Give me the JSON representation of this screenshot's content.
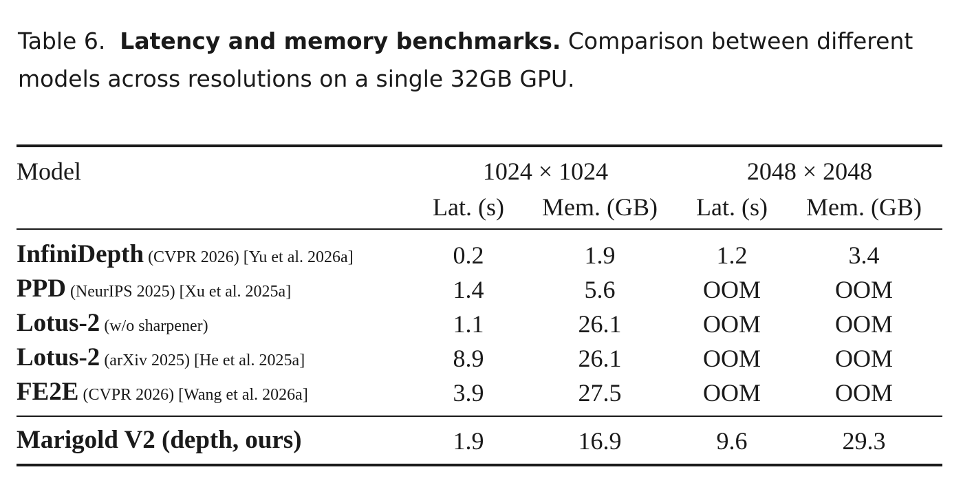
{
  "caption": {
    "label": "Table 6.",
    "bold_title": "Latency and memory benchmarks.",
    "text": "Comparison between different models across resolutions on a single 32GB GPU."
  },
  "table": {
    "model_header": "Model",
    "resolutions": [
      "1024 × 1024",
      "2048 × 2048"
    ],
    "subheaders": [
      "Lat. (s)",
      "Mem. (GB)",
      "Lat. (s)",
      "Mem. (GB)"
    ],
    "rows": [
      {
        "name": "InfiniDepth",
        "meta": "(CVPR 2026) [Yu et al. 2026a]",
        "values": [
          "0.2",
          "1.9",
          "1.2",
          "3.4"
        ]
      },
      {
        "name": "PPD",
        "meta": "(NeurIPS 2025) [Xu et al. 2025a]",
        "values": [
          "1.4",
          "5.6",
          "OOM",
          "OOM"
        ]
      },
      {
        "name": "Lotus-2",
        "meta": "(w/o sharpener)",
        "values": [
          "1.1",
          "26.1",
          "OOM",
          "OOM"
        ]
      },
      {
        "name": "Lotus-2",
        "meta": "(arXiv 2025) [He et al. 2025a]",
        "values": [
          "8.9",
          "26.1",
          "OOM",
          "OOM"
        ]
      },
      {
        "name": "FE2E",
        "meta": "(CVPR 2026) [Wang et al. 2026a]",
        "values": [
          "3.9",
          "27.5",
          "OOM",
          "OOM"
        ]
      }
    ],
    "final_row": {
      "name": "Marigold V2 (depth, ours)",
      "values": [
        "1.9",
        "16.9",
        "9.6",
        "29.3"
      ]
    }
  }
}
